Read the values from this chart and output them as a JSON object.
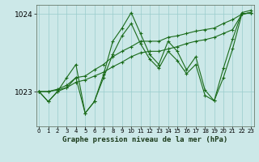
{
  "title": "Graphe pression niveau de la mer (hPa)",
  "bg_color": "#cce8e8",
  "grid_color": "#99cccc",
  "line_color": "#1a6b1a",
  "x_ticks": [
    0,
    1,
    2,
    3,
    4,
    5,
    6,
    7,
    8,
    9,
    10,
    11,
    12,
    13,
    14,
    15,
    16,
    17,
    18,
    19,
    20,
    21,
    22,
    23
  ],
  "yticks": [
    1023,
    1024
  ],
  "ylim": [
    1022.55,
    1024.12
  ],
  "xlim": [
    -0.3,
    23.3
  ],
  "series": [
    [
      1023.0,
      1022.87,
      1023.0,
      1023.05,
      1023.18,
      1022.72,
      1022.87,
      1023.18,
      1023.48,
      1023.72,
      1023.88,
      1023.62,
      1023.42,
      1023.3,
      1023.52,
      1023.4,
      1023.23,
      1023.35,
      1022.95,
      1022.88,
      1023.18,
      1023.55,
      1024.0,
      1024.02
    ],
    [
      1023.0,
      1023.0,
      1023.03,
      1023.08,
      1023.18,
      1023.2,
      1023.28,
      1023.35,
      1023.45,
      1023.52,
      1023.58,
      1023.65,
      1023.65,
      1023.65,
      1023.7,
      1023.72,
      1023.75,
      1023.78,
      1023.8,
      1023.82,
      1023.88,
      1023.93,
      1024.0,
      1024.02
    ],
    [
      1023.0,
      1023.0,
      1023.02,
      1023.05,
      1023.12,
      1023.15,
      1023.2,
      1023.25,
      1023.32,
      1023.38,
      1023.45,
      1023.5,
      1023.52,
      1023.52,
      1023.55,
      1023.58,
      1023.62,
      1023.65,
      1023.67,
      1023.7,
      1023.75,
      1023.8,
      1024.0,
      1024.02
    ],
    [
      1023.0,
      1022.87,
      1023.0,
      1023.18,
      1023.35,
      1022.72,
      1022.87,
      1023.22,
      1023.65,
      1023.82,
      1024.02,
      1023.75,
      1023.48,
      1023.35,
      1023.65,
      1023.52,
      1023.28,
      1023.45,
      1023.02,
      1022.88,
      1023.3,
      1023.68,
      1024.02,
      1024.05
    ]
  ]
}
